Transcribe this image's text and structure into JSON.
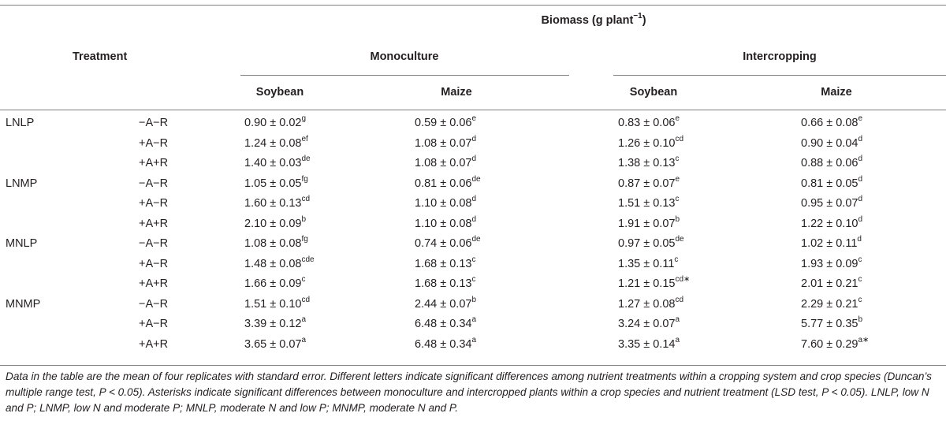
{
  "table": {
    "group_header": "Biomass (g plant",
    "group_header_sup": "−1",
    "group_header_close": ")",
    "treatment_header": "Treatment",
    "monoculture_header": "Monoculture",
    "intercropping_header": "Intercropping",
    "columns": [
      "Soybean",
      "Maize",
      "Soybean",
      "Maize"
    ],
    "rows": [
      {
        "group": "LNLP",
        "sub": "−A−R",
        "cells": [
          [
            "0.90 ± 0.02",
            "g"
          ],
          [
            "0.59 ± 0.06",
            "e"
          ],
          [
            "0.83 ± 0.06",
            "e"
          ],
          [
            "0.66 ± 0.08",
            "e"
          ]
        ]
      },
      {
        "group": "",
        "sub": "+A−R",
        "cells": [
          [
            "1.24 ± 0.08",
            "ef"
          ],
          [
            "1.08 ± 0.07",
            "d"
          ],
          [
            "1.26 ± 0.10",
            "cd"
          ],
          [
            "0.90 ± 0.04",
            "d"
          ]
        ]
      },
      {
        "group": "",
        "sub": "+A+R",
        "cells": [
          [
            "1.40 ± 0.03",
            "de"
          ],
          [
            "1.08 ± 0.07",
            "d"
          ],
          [
            "1.38 ± 0.13",
            "c"
          ],
          [
            "0.88 ± 0.06",
            "d"
          ]
        ]
      },
      {
        "group": "LNMP",
        "sub": "−A−R",
        "cells": [
          [
            "1.05 ± 0.05",
            "fg"
          ],
          [
            "0.81 ± 0.06",
            "de"
          ],
          [
            "0.87 ± 0.07",
            "e"
          ],
          [
            "0.81 ± 0.05",
            "d"
          ]
        ]
      },
      {
        "group": "",
        "sub": "+A−R",
        "cells": [
          [
            "1.60 ± 0.13",
            "cd"
          ],
          [
            "1.10 ± 0.08",
            "d"
          ],
          [
            "1.51 ± 0.13",
            "c"
          ],
          [
            "0.95 ± 0.07",
            "d"
          ]
        ]
      },
      {
        "group": "",
        "sub": "+A+R",
        "cells": [
          [
            "2.10 ± 0.09",
            "b"
          ],
          [
            "1.10 ± 0.08",
            "d"
          ],
          [
            "1.91 ± 0.07",
            "b"
          ],
          [
            "1.22 ± 0.10",
            "d"
          ]
        ]
      },
      {
        "group": "MNLP",
        "sub": "−A−R",
        "cells": [
          [
            "1.08 ± 0.08",
            "fg"
          ],
          [
            "0.74 ± 0.06",
            "de"
          ],
          [
            "0.97 ± 0.05",
            "de"
          ],
          [
            "1.02 ± 0.11",
            "d"
          ]
        ]
      },
      {
        "group": "",
        "sub": "+A−R",
        "cells": [
          [
            "1.48 ± 0.08",
            "cde"
          ],
          [
            "1.68 ± 0.13",
            "c"
          ],
          [
            "1.35 ± 0.11",
            "c"
          ],
          [
            "1.93 ± 0.09",
            "c"
          ]
        ]
      },
      {
        "group": "",
        "sub": "+A+R",
        "cells": [
          [
            "1.66 ± 0.09",
            "c"
          ],
          [
            "1.68 ± 0.13",
            "c"
          ],
          [
            "1.21 ± 0.15",
            "cd∗"
          ],
          [
            "2.01 ± 0.21",
            "c"
          ]
        ]
      },
      {
        "group": "MNMP",
        "sub": "−A−R",
        "cells": [
          [
            "1.51 ± 0.10",
            "cd"
          ],
          [
            "2.44 ± 0.07",
            "b"
          ],
          [
            "1.27 ± 0.08",
            "cd"
          ],
          [
            "2.29 ± 0.21",
            "c"
          ]
        ]
      },
      {
        "group": "",
        "sub": "+A−R",
        "cells": [
          [
            "3.39 ± 0.12",
            "a"
          ],
          [
            "6.48 ± 0.34",
            "a"
          ],
          [
            "3.24 ± 0.07",
            "a"
          ],
          [
            "5.77 ± 0.35",
            "b"
          ]
        ]
      },
      {
        "group": "",
        "sub": "+A+R",
        "cells": [
          [
            "3.65 ± 0.07",
            "a"
          ],
          [
            "6.48 ± 0.34",
            "a"
          ],
          [
            "3.35 ± 0.14",
            "a"
          ],
          [
            "7.60 ± 0.29",
            "a∗"
          ]
        ]
      }
    ]
  },
  "footnote": "Data in the table are the mean of four replicates with standard error. Different letters indicate significant differences among nutrient treatments within a cropping system and crop species (Duncan’s multiple range test, P < 0.05). Asterisks indicate significant differences between monoculture and intercropped plants within a crop species and nutrient treatment (LSD test, P < 0.05). LNLP, low N and P; LNMP, low N and moderate P; MNLP, moderate N and low P; MNMP, moderate N and P."
}
